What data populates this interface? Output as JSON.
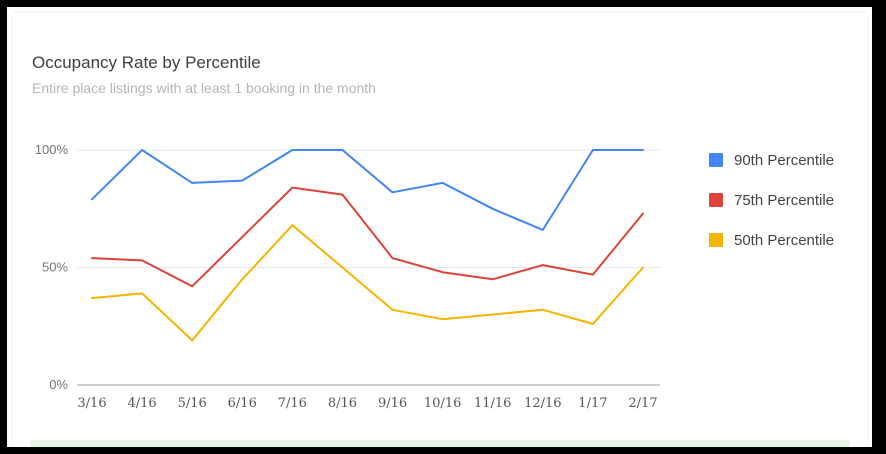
{
  "chart_data": {
    "type": "line",
    "title": "Occupancy Rate by Percentile",
    "subtitle": "Entire place listings with at least 1 booking in the month",
    "categories": [
      "3/16",
      "4/16",
      "5/16",
      "6/16",
      "7/16",
      "8/16",
      "9/16",
      "10/16",
      "11/16",
      "12/16",
      "1/17",
      "2/17"
    ],
    "y_ticks": [
      "0%",
      "50%",
      "100%"
    ],
    "ylim": [
      0,
      100
    ],
    "grid": true,
    "legend_position": "right",
    "series": [
      {
        "name": "90th Percentile",
        "color": "#4285f4",
        "values": [
          79,
          100,
          86,
          87,
          100,
          100,
          82,
          86,
          75,
          66,
          100,
          100
        ]
      },
      {
        "name": "75th Percentile",
        "color": "#db4437",
        "values": [
          54,
          53,
          42,
          63,
          84,
          81,
          54,
          48,
          45,
          51,
          47,
          73
        ]
      },
      {
        "name": "50th Percentile",
        "color": "#f4b400",
        "values": [
          37,
          39,
          19,
          45,
          68,
          50,
          32,
          28,
          30,
          32,
          26,
          50
        ]
      }
    ]
  }
}
